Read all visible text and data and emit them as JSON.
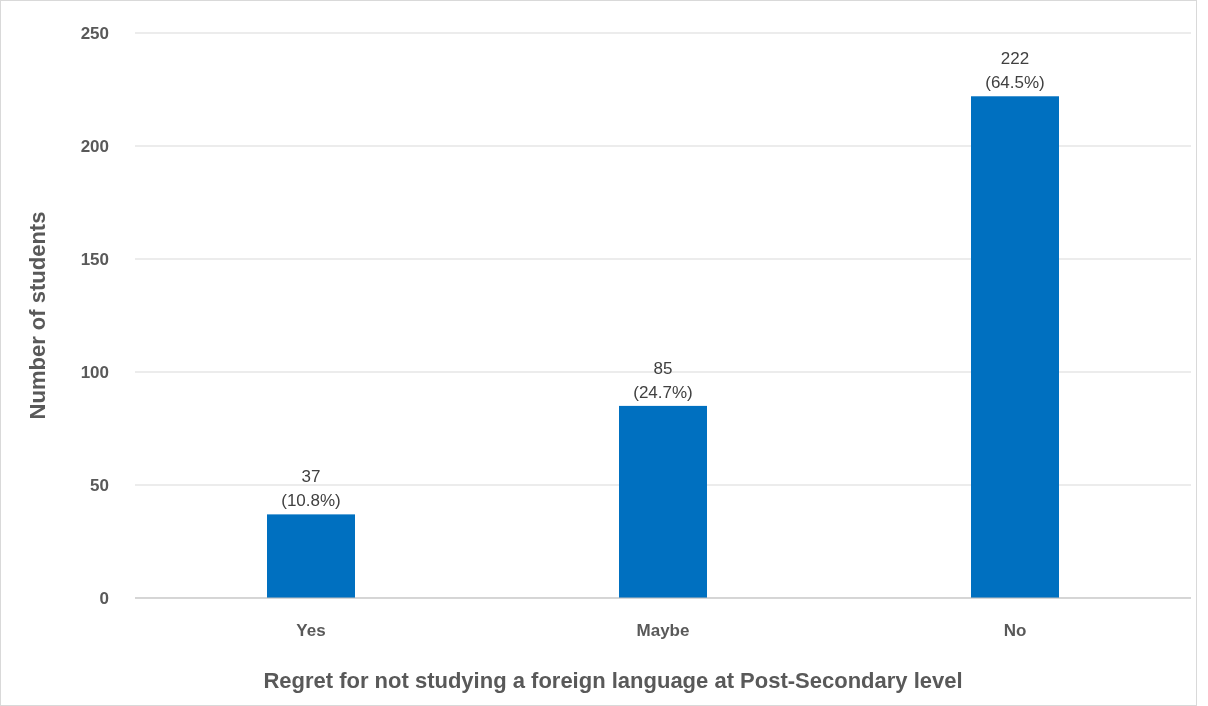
{
  "chart_data": {
    "type": "bar",
    "xlabel": "Regret for not studying a foreign language at Post-Secondary level",
    "ylabel": "Number of students",
    "categories": [
      "Yes",
      "Maybe",
      "No"
    ],
    "values": [
      37,
      85,
      222
    ],
    "value_labels": [
      "37\n(10.8%)",
      "85\n(24.7%)",
      "222\n(64.5%)"
    ],
    "color": "#0070c0",
    "ylim": [
      0,
      250
    ],
    "yticks": [
      0,
      50,
      100,
      150,
      200,
      250
    ],
    "grid": "y"
  }
}
